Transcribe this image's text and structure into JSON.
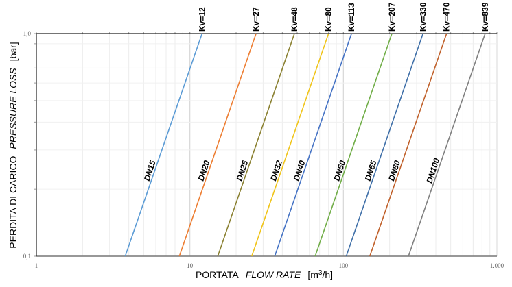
{
  "chart_data": {
    "type": "line",
    "x_scale": "log",
    "y_scale": "log",
    "xlim": [
      1,
      1000
    ],
    "ylim": [
      0.1,
      1.0
    ],
    "grid": true,
    "xlabel": {
      "main": "PORTATA",
      "italic": "FLOW RATE",
      "unit_prefix": "[m",
      "unit_sup": "3",
      "unit_suffix": "/h]"
    },
    "ylabel": {
      "main": "PERDITA DI CARICO",
      "italic": "PRESSURE LOSS",
      "unit": "[bar]"
    },
    "x_ticks": [
      {
        "value": 1,
        "label": "1"
      },
      {
        "value": 10,
        "label": "10"
      },
      {
        "value": 100,
        "label": "100"
      },
      {
        "value": 1000,
        "label": "1.000"
      }
    ],
    "y_ticks": [
      {
        "value": 0.1,
        "label": "0,1"
      },
      {
        "value": 1.0,
        "label": "1,0"
      }
    ],
    "relation": "Q = Kv * sqrt(dp)",
    "series": [
      {
        "name": "DN15",
        "kv_label": "Kv=12",
        "kv": 12,
        "color": "#5b9bd5",
        "x": [
          3.79,
          12
        ],
        "y": [
          0.1,
          1.0
        ]
      },
      {
        "name": "DN20",
        "kv_label": "Kv=27",
        "kv": 27,
        "color": "#ed7d31",
        "x": [
          8.54,
          27
        ],
        "y": [
          0.1,
          1.0
        ]
      },
      {
        "name": "DN25",
        "kv_label": "Kv=48",
        "kv": 48,
        "color": "#8a8030",
        "x": [
          15.2,
          48
        ],
        "y": [
          0.1,
          1.0
        ]
      },
      {
        "name": "DN32",
        "kv_label": "Kv=80",
        "kv": 80,
        "color": "#f0c419",
        "x": [
          25.3,
          80
        ],
        "y": [
          0.1,
          1.0
        ]
      },
      {
        "name": "DN40",
        "kv_label": "Kv=113",
        "kv": 113,
        "color": "#4472c4",
        "x": [
          35.7,
          113
        ],
        "y": [
          0.1,
          1.0
        ]
      },
      {
        "name": "DN50",
        "kv_label": "Kv=207",
        "kv": 207,
        "color": "#70ad47",
        "x": [
          65.5,
          207
        ],
        "y": [
          0.1,
          1.0
        ]
      },
      {
        "name": "DN65",
        "kv_label": "Kv=330",
        "kv": 330,
        "color": "#3f6fa8",
        "x": [
          104.4,
          330
        ],
        "y": [
          0.1,
          1.0
        ]
      },
      {
        "name": "DN80",
        "kv_label": "Kv=470",
        "kv": 470,
        "color": "#c0602a",
        "x": [
          148.6,
          470
        ],
        "y": [
          0.1,
          1.0
        ]
      },
      {
        "name": "DN100",
        "kv_label": "Kv=839",
        "kv": 839,
        "color": "#7f7f7f",
        "x": [
          265.3,
          839
        ],
        "y": [
          0.1,
          1.0
        ]
      }
    ]
  }
}
